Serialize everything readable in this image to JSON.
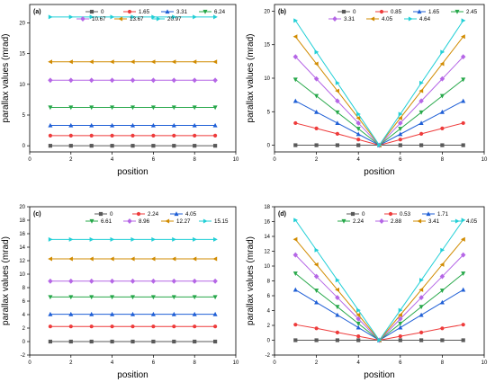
{
  "figure": {
    "xlabel": "position",
    "ylabel": "parallax values (mrad)"
  },
  "colors": [
    "#595959",
    "#ee3b3b",
    "#1f5fd6",
    "#27a84a",
    "#b566e6",
    "#d18b00",
    "#22cfd6"
  ],
  "markers": [
    "square",
    "circle",
    "triangle-up",
    "triangle-down",
    "diamond",
    "triangle-left",
    "triangle-right"
  ],
  "chart_data": [
    {
      "panel": "(a)",
      "type": "line",
      "xlabel": "position",
      "ylabel": "parallax values (mrad)",
      "xlim": [
        0,
        10
      ],
      "ylim": [
        -1,
        23
      ],
      "xticks": [
        0,
        2,
        4,
        6,
        8,
        10
      ],
      "yticks": [
        0,
        5,
        10,
        15,
        20
      ],
      "x": [
        1,
        2,
        3,
        4,
        5,
        6,
        7,
        8,
        9
      ],
      "legend_rows": [
        4,
        3
      ],
      "series": [
        {
          "name": "0",
          "values": [
            0,
            0,
            0,
            0,
            0,
            0,
            0,
            0,
            0
          ]
        },
        {
          "name": "1.65",
          "values": [
            1.65,
            1.65,
            1.65,
            1.65,
            1.65,
            1.65,
            1.65,
            1.65,
            1.65
          ]
        },
        {
          "name": "3.31",
          "values": [
            3.31,
            3.31,
            3.31,
            3.31,
            3.31,
            3.31,
            3.31,
            3.31,
            3.31
          ]
        },
        {
          "name": "6.24",
          "values": [
            6.24,
            6.24,
            6.24,
            6.24,
            6.24,
            6.24,
            6.24,
            6.24,
            6.24
          ]
        },
        {
          "name": "10.67",
          "values": [
            10.67,
            10.67,
            10.67,
            10.67,
            10.67,
            10.67,
            10.67,
            10.67,
            10.67
          ]
        },
        {
          "name": "13.67",
          "values": [
            13.67,
            13.67,
            13.67,
            13.67,
            13.67,
            13.67,
            13.67,
            13.67,
            13.67
          ]
        },
        {
          "name": "20.97",
          "values": [
            20.97,
            20.97,
            20.97,
            20.97,
            20.97,
            20.97,
            20.97,
            20.97,
            20.97
          ]
        }
      ]
    },
    {
      "panel": "(b)",
      "type": "line",
      "xlabel": "position",
      "ylabel": "parallax values (mrad)",
      "xlim": [
        0,
        10
      ],
      "ylim": [
        -1,
        21
      ],
      "xticks": [
        0,
        2,
        4,
        6,
        8,
        10
      ],
      "yticks": [
        0,
        5,
        10,
        15,
        20
      ],
      "x": [
        1,
        2,
        3,
        4,
        5,
        6,
        7,
        8,
        9
      ],
      "legend_rows": [
        4,
        3
      ],
      "series": [
        {
          "name": "0",
          "values": [
            0,
            0,
            0,
            0,
            0,
            0,
            0,
            0,
            0
          ]
        },
        {
          "name": "0.85",
          "values": [
            3.3,
            2.5,
            1.7,
            0.85,
            0,
            0.85,
            1.7,
            2.5,
            3.3
          ]
        },
        {
          "name": "1.65",
          "values": [
            6.6,
            4.95,
            3.3,
            1.65,
            0,
            1.65,
            3.3,
            4.95,
            6.6
          ]
        },
        {
          "name": "2.45",
          "values": [
            9.8,
            7.35,
            4.9,
            2.45,
            0,
            2.45,
            4.9,
            7.35,
            9.8
          ]
        },
        {
          "name": "3.31",
          "values": [
            13.2,
            9.9,
            6.6,
            3.3,
            0,
            3.3,
            6.6,
            9.9,
            13.2
          ]
        },
        {
          "name": "4.05",
          "values": [
            16.2,
            12.15,
            8.1,
            4.05,
            0,
            4.05,
            8.1,
            12.15,
            16.2
          ]
        },
        {
          "name": "4.64",
          "values": [
            18.6,
            13.9,
            9.3,
            4.64,
            0,
            4.64,
            9.3,
            13.9,
            18.6
          ]
        }
      ]
    },
    {
      "panel": "(c)",
      "type": "line",
      "xlabel": "position",
      "ylabel": "parallax values (mrad)",
      "xlim": [
        0,
        10
      ],
      "ylim": [
        -2,
        20
      ],
      "xticks": [
        0,
        2,
        4,
        6,
        8,
        10
      ],
      "yticks": [
        -2,
        0,
        2,
        4,
        6,
        8,
        10,
        12,
        14,
        16,
        18,
        20
      ],
      "x": [
        1,
        2,
        3,
        4,
        5,
        6,
        7,
        8,
        9
      ],
      "legend_rows": [
        3,
        4
      ],
      "series": [
        {
          "name": "0",
          "values": [
            0,
            0,
            0,
            0,
            0,
            0,
            0,
            0,
            0
          ]
        },
        {
          "name": "2.24",
          "values": [
            2.24,
            2.24,
            2.24,
            2.24,
            2.24,
            2.24,
            2.24,
            2.24,
            2.24
          ]
        },
        {
          "name": "4.05",
          "values": [
            4.05,
            4.05,
            4.05,
            4.05,
            4.05,
            4.05,
            4.05,
            4.05,
            4.05
          ]
        },
        {
          "name": "6.61",
          "values": [
            6.61,
            6.61,
            6.61,
            6.61,
            6.61,
            6.61,
            6.61,
            6.61,
            6.61
          ]
        },
        {
          "name": "8.96",
          "values": [
            8.96,
            8.96,
            8.96,
            8.96,
            8.96,
            8.96,
            8.96,
            8.96,
            8.96
          ]
        },
        {
          "name": "12.27",
          "values": [
            12.27,
            12.27,
            12.27,
            12.27,
            12.27,
            12.27,
            12.27,
            12.27,
            12.27
          ]
        },
        {
          "name": "15.15",
          "values": [
            15.15,
            15.15,
            15.15,
            15.15,
            15.15,
            15.15,
            15.15,
            15.15,
            15.15
          ]
        }
      ]
    },
    {
      "panel": "(d)",
      "type": "line",
      "xlabel": "position",
      "ylabel": "parallax values (mrad)",
      "xlim": [
        0,
        10
      ],
      "ylim": [
        -2,
        18
      ],
      "xticks": [
        0,
        2,
        4,
        6,
        8,
        10
      ],
      "yticks": [
        -2,
        0,
        2,
        4,
        6,
        8,
        10,
        12,
        14,
        16,
        18
      ],
      "x": [
        1,
        2,
        3,
        4,
        5,
        6,
        7,
        8,
        9
      ],
      "legend_rows": [
        3,
        4
      ],
      "series": [
        {
          "name": "0",
          "values": [
            0,
            0,
            0,
            0,
            0,
            0,
            0,
            0,
            0
          ]
        },
        {
          "name": "0.53",
          "values": [
            2.1,
            1.6,
            1.05,
            0.53,
            0,
            0.53,
            1.05,
            1.6,
            2.1
          ]
        },
        {
          "name": "1.71",
          "values": [
            6.8,
            5.1,
            3.4,
            1.71,
            0,
            1.71,
            3.4,
            5.1,
            6.8
          ]
        },
        {
          "name": "2.24",
          "values": [
            9.0,
            6.7,
            4.5,
            2.24,
            0,
            2.24,
            4.5,
            6.7,
            9.0
          ]
        },
        {
          "name": "2.88",
          "values": [
            11.5,
            8.6,
            5.75,
            2.88,
            0,
            2.88,
            5.75,
            8.6,
            11.5
          ]
        },
        {
          "name": "3.41",
          "values": [
            13.6,
            10.2,
            6.8,
            3.41,
            0,
            3.41,
            6.8,
            10.2,
            13.6
          ]
        },
        {
          "name": "4.05",
          "values": [
            16.2,
            12.15,
            8.1,
            4.05,
            0,
            4.05,
            8.1,
            12.15,
            16.2
          ]
        }
      ]
    }
  ]
}
